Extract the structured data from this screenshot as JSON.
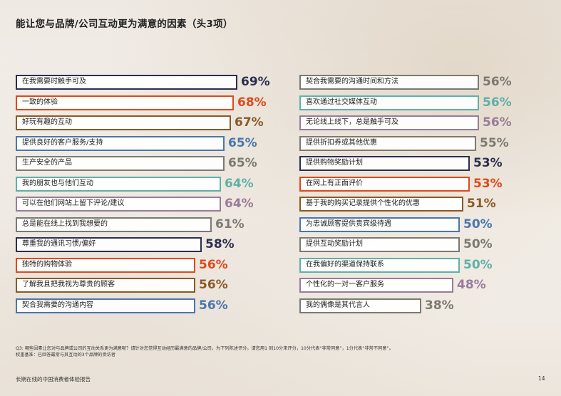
{
  "title": "能让您与品牌/公司互动更为满意的因素（头3项）",
  "colors": {
    "navy": "#2b2f4e",
    "orange": "#dd4a1c",
    "brown": "#8a5a26",
    "blue": "#4a76ad",
    "gray": "#7b7a72",
    "teal": "#5fb0a8",
    "mauve": "#9a7b99"
  },
  "chart_data": {
    "type": "bar",
    "orientation": "horizontal",
    "xlim": [
      0,
      100
    ],
    "columns": [
      {
        "items": [
          {
            "label": "在我需要时触手可及",
            "value": 69,
            "display": "69%",
            "color": "navy"
          },
          {
            "label": "一致的体验",
            "value": 68,
            "display": "68%",
            "color": "orange"
          },
          {
            "label": "好玩有趣的互动",
            "value": 67,
            "display": "67%",
            "color": "brown"
          },
          {
            "label": "提供良好的客户服务/支持",
            "value": 65,
            "display": "65%",
            "color": "blue"
          },
          {
            "label": "生产安全的产品",
            "value": 65,
            "display": "65%",
            "color": "gray"
          },
          {
            "label": "我的朋友也与他们互动",
            "value": 64,
            "display": "64%",
            "color": "teal"
          },
          {
            "label": "可以在他们网站上留下评论/建议",
            "value": 64,
            "display": "64%",
            "color": "mauve"
          },
          {
            "label": "总是能在线上找到我想要的",
            "value": 61,
            "display": "61%",
            "color": "gray"
          },
          {
            "label": "尊重我的通讯习惯/偏好",
            "value": 58,
            "display": "58%",
            "color": "navy"
          },
          {
            "label": "独特的购物体验",
            "value": 56,
            "display": "56%",
            "color": "orange"
          },
          {
            "label": "了解我且把我视为尊贵的顾客",
            "value": 56,
            "display": "56%",
            "color": "brown"
          },
          {
            "label": "契合我需要的沟通内容",
            "value": 56,
            "display": "56%",
            "color": "blue"
          }
        ]
      },
      {
        "items": [
          {
            "label": "契合我需要的沟通时间和方法",
            "value": 56,
            "display": "56%",
            "color": "gray"
          },
          {
            "label": "喜欢通过社交媒体互动",
            "value": 56,
            "display": "56%",
            "color": "teal"
          },
          {
            "label": "无论线上线下，总是触手可及",
            "value": 56,
            "display": "56%",
            "color": "mauve"
          },
          {
            "label": "提供折扣券或其他优惠",
            "value": 55,
            "display": "55%",
            "color": "gray"
          },
          {
            "label": "提供购物奖励计划",
            "value": 53,
            "display": "53%",
            "color": "navy"
          },
          {
            "label": "在网上有正面评价",
            "value": 53,
            "display": "53%",
            "color": "orange"
          },
          {
            "label": "基于我的购买记录提供个性化的优惠",
            "value": 51,
            "display": "51%",
            "color": "brown"
          },
          {
            "label": "为忠诚顾客提供贵宾级待遇",
            "value": 50,
            "display": "50%",
            "color": "blue"
          },
          {
            "label": "提供互动奖励计划",
            "value": 50,
            "display": "50%",
            "color": "gray"
          },
          {
            "label": "在我偏好的渠道保持联系",
            "value": 50,
            "display": "50%",
            "color": "teal"
          },
          {
            "label": "个性化的一对一客户服务",
            "value": 48,
            "display": "48%",
            "color": "mauve"
          },
          {
            "label": "我的偶像是其代言人",
            "value": 38,
            "display": "38%",
            "color": "gray"
          }
        ]
      }
    ]
  },
  "footnote": {
    "line1": "Q3: 哪些因素让您对与品牌或公司的互动关系更为满意呢？请针对您觉得互动经历最满意的品牌/公司，为下列陈述评分。请您用1 到10分来评分，10分代表“非常同意”，1分代表“非常不同意”。",
    "line2": "权重基准：已回答最常与其互动的3个品牌的受访者"
  },
  "footer": {
    "report_name": "长期在线的中国消费者体验报告",
    "page_number": "14"
  }
}
